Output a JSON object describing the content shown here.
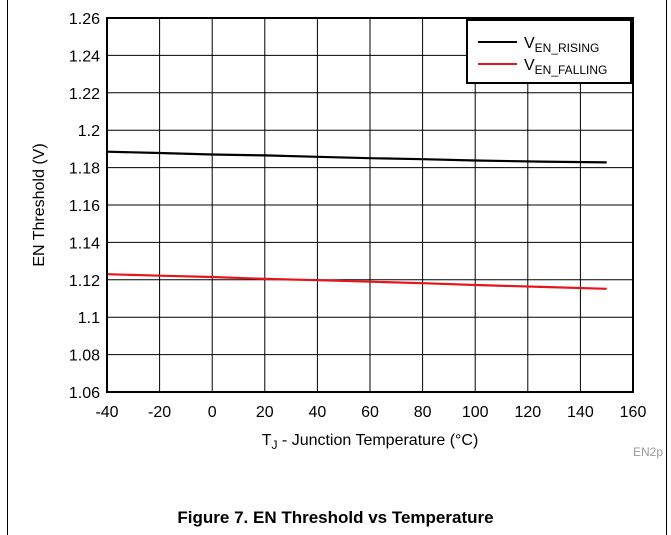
{
  "caption": "Figure 7. EN Threshold vs Temperature",
  "figure_code": "EN2p",
  "chart_data": {
    "type": "line",
    "xlabel": {
      "main": "T",
      "sub": "J",
      "rest": " - Junction Temperature (°C)"
    },
    "ylabel": "EN Threshold (V)",
    "xlim": [
      -40,
      160
    ],
    "ylim": [
      1.06,
      1.26
    ],
    "x_ticks": [
      "-40",
      "-20",
      "0",
      "20",
      "40",
      "60",
      "80",
      "100",
      "120",
      "140",
      "160"
    ],
    "y_ticks": [
      "1.06",
      "1.08",
      "1.1",
      "1.12",
      "1.14",
      "1.16",
      "1.18",
      "1.2",
      "1.22",
      "1.24",
      "1.26"
    ],
    "grid": true,
    "legend_position": "top-right",
    "series": [
      {
        "name": {
          "main": "V",
          "sub": "EN_RISING"
        },
        "color": "#000000",
        "x": [
          -40,
          -20,
          0,
          20,
          40,
          60,
          80,
          100,
          125,
          150
        ],
        "y": [
          1.1885,
          1.1878,
          1.187,
          1.1865,
          1.1858,
          1.185,
          1.1845,
          1.1838,
          1.1832,
          1.1828
        ]
      },
      {
        "name": {
          "main": "V",
          "sub": "EN_FALLING"
        },
        "color": "#e8141b",
        "x": [
          -40,
          -20,
          0,
          20,
          40,
          60,
          80,
          100,
          125,
          150
        ],
        "y": [
          1.123,
          1.1222,
          1.1215,
          1.1205,
          1.1198,
          1.119,
          1.1182,
          1.1172,
          1.1162,
          1.1152
        ]
      }
    ]
  }
}
